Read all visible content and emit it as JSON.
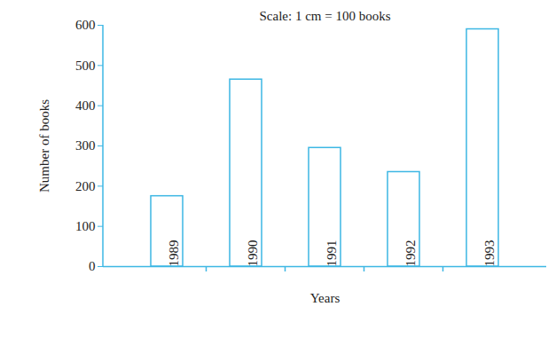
{
  "chart_data": {
    "type": "bar",
    "title": "Scale: 1 cm = 100 books",
    "xlabel": "Years",
    "ylabel": "Number of books",
    "categories": [
      "1989",
      "1990",
      "1991",
      "1992",
      "1993"
    ],
    "values": [
      175,
      465,
      295,
      235,
      590
    ],
    "color": "#3db7e4",
    "ylim": [
      0,
      600
    ],
    "yticks": [
      0,
      100,
      200,
      300,
      400,
      500,
      600
    ],
    "grid": false,
    "tick_labels": "y"
  }
}
